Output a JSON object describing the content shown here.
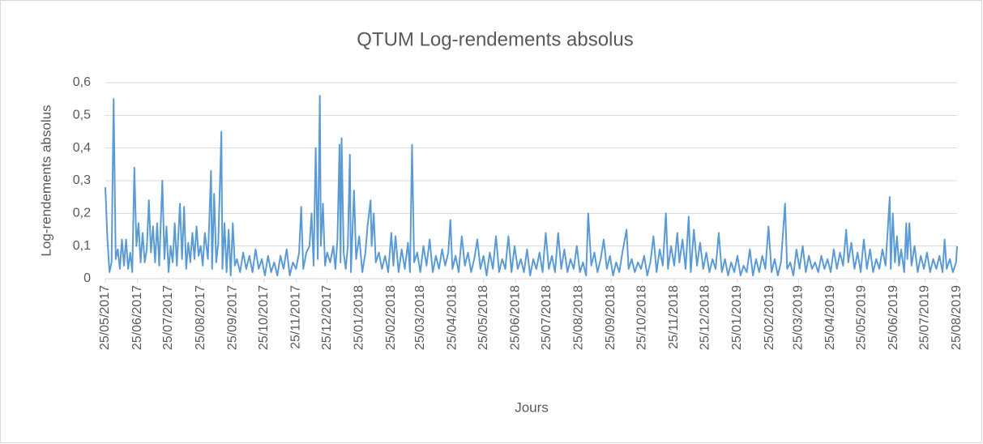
{
  "chart_data": {
    "type": "line",
    "title": "QTUM Log-rendements absolus",
    "ylabel": "Log-rendements absolus",
    "xlabel": "Jours",
    "color": "#5b9bd5",
    "grid": true,
    "ylim": [
      0,
      0.6
    ],
    "yticks": [
      0,
      {
        "value": 0.1,
        "label": "0,1"
      },
      {
        "value": 0.2,
        "label": "0,2"
      },
      {
        "value": 0.3,
        "label": "0,3"
      },
      {
        "value": 0.4,
        "label": "0,4"
      },
      {
        "value": 0.5,
        "label": "0,5"
      },
      {
        "value": 0.6,
        "label": "0,6"
      }
    ],
    "xlim": [
      "25/05/2017",
      "25/08/2019"
    ],
    "xticks": [
      "25/05/2017",
      "25/06/2017",
      "25/07/2017",
      "25/08/2017",
      "25/09/2017",
      "25/10/2017",
      "25/11/2017",
      "25/12/2017",
      "25/01/2018",
      "25/02/2018",
      "25/03/2018",
      "25/04/2018",
      "25/05/2018",
      "25/06/2018",
      "25/07/2018",
      "25/08/2018",
      "25/09/2018",
      "25/10/2018",
      "25/11/2018",
      "25/12/2018",
      "25/01/2019",
      "25/02/2019",
      "25/03/2019",
      "25/04/2019",
      "25/05/2019",
      "25/06/2019",
      "25/07/2019",
      "25/08/2019"
    ],
    "x": [
      "25/05/2017",
      "27/05/2017",
      "29/05/2017",
      "31/05/2017",
      "02/06/2017",
      "04/06/2017",
      "06/06/2017",
      "08/06/2017",
      "10/06/2017",
      "12/06/2017",
      "14/06/2017",
      "16/06/2017",
      "18/06/2017",
      "20/06/2017",
      "22/06/2017",
      "24/06/2017",
      "26/06/2017",
      "28/06/2017",
      "30/06/2017",
      "02/07/2017",
      "04/07/2017",
      "06/07/2017",
      "08/07/2017",
      "10/07/2017",
      "12/07/2017",
      "14/07/2017",
      "16/07/2017",
      "19/07/2017",
      "21/07/2017",
      "23/07/2017",
      "25/07/2017",
      "27/07/2017",
      "29/07/2017",
      "31/07/2017",
      "02/08/2017",
      "05/08/2017",
      "07/08/2017",
      "09/08/2017",
      "11/08/2017",
      "13/08/2017",
      "15/08/2017",
      "17/08/2017",
      "19/08/2017",
      "21/08/2017",
      "23/08/2017",
      "25/08/2017",
      "27/08/2017",
      "29/08/2017",
      "01/09/2017",
      "04/09/2017",
      "05/09/2017",
      "07/09/2017",
      "09/09/2017",
      "11/09/2017",
      "14/09/2017",
      "15/09/2017",
      "17/09/2017",
      "19/09/2017",
      "21/09/2017",
      "23/09/2017",
      "25/09/2017",
      "27/09/2017",
      "29/09/2017",
      "02/10/2017",
      "05/10/2017",
      "08/10/2017",
      "11/10/2017",
      "14/10/2017",
      "17/10/2017",
      "20/10/2017",
      "23/10/2017",
      "26/10/2017",
      "29/10/2017",
      "01/11/2017",
      "04/11/2017",
      "07/11/2017",
      "10/11/2017",
      "13/11/2017",
      "16/11/2017",
      "19/11/2017",
      "22/11/2017",
      "25/11/2017",
      "28/11/2017",
      "30/11/2017",
      "02/12/2017",
      "05/12/2017",
      "08/12/2017",
      "10/12/2017",
      "12/12/2017",
      "14/12/2017",
      "16/12/2017",
      "18/12/2017",
      "19/12/2017",
      "21/12/2017",
      "23/12/2017",
      "25/12/2017",
      "28/12/2017",
      "31/12/2017",
      "02/01/2018",
      "04/01/2018",
      "06/01/2018",
      "07/01/2018",
      "08/01/2018",
      "10/01/2018",
      "12/01/2018",
      "14/01/2018",
      "16/01/2018",
      "17/01/2018",
      "20/01/2018",
      "22/01/2018",
      "25/01/2018",
      "28/01/2018",
      "31/01/2018",
      "02/02/2018",
      "05/02/2018",
      "06/02/2018",
      "08/02/2018",
      "10/02/2018",
      "13/02/2018",
      "16/02/2018",
      "19/02/2018",
      "22/02/2018",
      "25/02/2018",
      "27/02/2018",
      "01/03/2018",
      "04/03/2018",
      "07/03/2018",
      "10/03/2018",
      "13/03/2018",
      "15/03/2018",
      "17/03/2018",
      "19/03/2018",
      "22/03/2018",
      "25/03/2018",
      "28/03/2018",
      "31/03/2018",
      "03/04/2018",
      "06/04/2018",
      "09/04/2018",
      "12/04/2018",
      "15/04/2018",
      "18/04/2018",
      "21/04/2018",
      "23/04/2018",
      "25/04/2018",
      "28/04/2018",
      "01/05/2018",
      "04/05/2018",
      "07/05/2018",
      "10/05/2018",
      "13/05/2018",
      "16/05/2018",
      "19/05/2018",
      "22/05/2018",
      "25/05/2018",
      "28/05/2018",
      "31/05/2018",
      "03/06/2018",
      "06/06/2018",
      "09/06/2018",
      "12/06/2018",
      "15/06/2018",
      "18/06/2018",
      "21/06/2018",
      "24/06/2018",
      "27/06/2018",
      "30/06/2018",
      "03/07/2018",
      "06/07/2018",
      "09/07/2018",
      "12/07/2018",
      "15/07/2018",
      "18/07/2018",
      "21/07/2018",
      "24/07/2018",
      "27/07/2018",
      "30/07/2018",
      "02/08/2018",
      "05/08/2018",
      "08/08/2018",
      "11/08/2018",
      "14/08/2018",
      "17/08/2018",
      "20/08/2018",
      "23/08/2018",
      "26/08/2018",
      "29/08/2018",
      "01/09/2018",
      "03/09/2018",
      "06/09/2018",
      "09/09/2018",
      "12/09/2018",
      "15/09/2018",
      "18/09/2018",
      "21/09/2018",
      "24/09/2018",
      "27/09/2018",
      "30/09/2018",
      "03/10/2018",
      "06/10/2018",
      "10/10/2018",
      "12/10/2018",
      "15/10/2018",
      "18/10/2018",
      "21/10/2018",
      "24/10/2018",
      "27/10/2018",
      "30/10/2018",
      "02/11/2018",
      "05/11/2018",
      "08/11/2018",
      "11/11/2018",
      "14/11/2018",
      "17/11/2018",
      "19/11/2018",
      "22/11/2018",
      "25/11/2018",
      "28/11/2018",
      "30/11/2018",
      "03/12/2018",
      "06/12/2018",
      "09/12/2018",
      "11/12/2018",
      "14/12/2018",
      "17/12/2018",
      "20/12/2018",
      "23/12/2018",
      "26/12/2018",
      "29/12/2018",
      "01/01/2019",
      "04/01/2019",
      "07/01/2019",
      "10/01/2019",
      "13/01/2019",
      "16/01/2019",
      "19/01/2019",
      "22/01/2019",
      "25/01/2019",
      "28/01/2019",
      "31/01/2019",
      "03/02/2019",
      "06/02/2019",
      "09/02/2019",
      "12/02/2019",
      "15/02/2019",
      "18/02/2019",
      "21/02/2019",
      "24/02/2019",
      "27/02/2019",
      "02/03/2019",
      "05/03/2019",
      "08/03/2019",
      "12/03/2019",
      "14/03/2019",
      "17/03/2019",
      "20/03/2019",
      "23/03/2019",
      "26/03/2019",
      "29/03/2019",
      "01/04/2019",
      "04/04/2019",
      "07/04/2019",
      "10/04/2019",
      "13/04/2019",
      "16/04/2019",
      "19/04/2019",
      "22/04/2019",
      "25/04/2019",
      "28/04/2019",
      "01/05/2019",
      "04/05/2019",
      "07/05/2019",
      "10/05/2019",
      "12/05/2019",
      "15/05/2019",
      "18/05/2019",
      "21/05/2019",
      "24/05/2019",
      "27/05/2019",
      "30/05/2019",
      "02/06/2019",
      "05/06/2019",
      "08/06/2019",
      "11/06/2019",
      "14/06/2019",
      "17/06/2019",
      "21/06/2019",
      "22/06/2019",
      "24/06/2019",
      "26/06/2019",
      "28/06/2019",
      "30/06/2019",
      "02/07/2019",
      "05/07/2019",
      "07/07/2019",
      "08/07/2019",
      "10/07/2019",
      "12/07/2019",
      "15/07/2019",
      "18/07/2019",
      "21/07/2019",
      "24/07/2019",
      "27/07/2019",
      "30/07/2019",
      "02/08/2019",
      "05/08/2019",
      "08/08/2019",
      "11/08/2019",
      "13/08/2019",
      "15/08/2019",
      "18/08/2019",
      "21/08/2019",
      "24/08/2019",
      "25/08/2019"
    ],
    "values": [
      0.28,
      0.12,
      0.02,
      0.05,
      0.55,
      0.06,
      0.09,
      0.03,
      0.12,
      0.04,
      0.12,
      0.03,
      0.08,
      0.02,
      0.34,
      0.1,
      0.17,
      0.05,
      0.14,
      0.05,
      0.09,
      0.24,
      0.08,
      0.16,
      0.05,
      0.17,
      0.04,
      0.3,
      0.06,
      0.16,
      0.02,
      0.1,
      0.05,
      0.17,
      0.04,
      0.23,
      0.06,
      0.22,
      0.03,
      0.11,
      0.05,
      0.14,
      0.06,
      0.16,
      0.07,
      0.1,
      0.04,
      0.14,
      0.06,
      0.33,
      0.03,
      0.26,
      0.05,
      0.11,
      0.45,
      0.03,
      0.17,
      0.02,
      0.15,
      0.01,
      0.17,
      0.04,
      0.06,
      0.02,
      0.08,
      0.03,
      0.07,
      0.02,
      0.09,
      0.03,
      0.06,
      0.01,
      0.07,
      0.02,
      0.05,
      0.01,
      0.07,
      0.03,
      0.09,
      0.01,
      0.05,
      0.03,
      0.08,
      0.22,
      0.03,
      0.08,
      0.1,
      0.2,
      0.04,
      0.4,
      0.06,
      0.56,
      0.1,
      0.23,
      0.04,
      0.08,
      0.05,
      0.1,
      0.03,
      0.12,
      0.41,
      0.05,
      0.43,
      0.08,
      0.03,
      0.1,
      0.38,
      0.02,
      0.27,
      0.06,
      0.13,
      0.02,
      0.08,
      0.16,
      0.24,
      0.1,
      0.2,
      0.05,
      0.08,
      0.03,
      0.07,
      0.02,
      0.14,
      0.04,
      0.13,
      0.02,
      0.09,
      0.03,
      0.11,
      0.02,
      0.41,
      0.05,
      0.08,
      0.02,
      0.1,
      0.04,
      0.12,
      0.02,
      0.07,
      0.03,
      0.09,
      0.04,
      0.08,
      0.18,
      0.03,
      0.07,
      0.02,
      0.13,
      0.04,
      0.08,
      0.02,
      0.06,
      0.12,
      0.03,
      0.07,
      0.01,
      0.08,
      0.03,
      0.13,
      0.02,
      0.06,
      0.03,
      0.13,
      0.02,
      0.1,
      0.03,
      0.06,
      0.02,
      0.09,
      0.01,
      0.06,
      0.03,
      0.08,
      0.02,
      0.14,
      0.03,
      0.07,
      0.02,
      0.14,
      0.03,
      0.09,
      0.02,
      0.06,
      0.03,
      0.1,
      0.02,
      0.05,
      0.01,
      0.2,
      0.04,
      0.08,
      0.02,
      0.06,
      0.12,
      0.03,
      0.07,
      0.01,
      0.05,
      0.02,
      0.08,
      0.15,
      0.03,
      0.06,
      0.02,
      0.05,
      0.03,
      0.07,
      0.01,
      0.05,
      0.13,
      0.02,
      0.09,
      0.04,
      0.2,
      0.03,
      0.1,
      0.04,
      0.14,
      0.05,
      0.12,
      0.03,
      0.19,
      0.02,
      0.15,
      0.04,
      0.11,
      0.03,
      0.08,
      0.02,
      0.06,
      0.03,
      0.14,
      0.02,
      0.06,
      0.01,
      0.05,
      0.02,
      0.07,
      0.01,
      0.04,
      0.02,
      0.09,
      0.01,
      0.06,
      0.02,
      0.07,
      0.03,
      0.16,
      0.02,
      0.06,
      0.01,
      0.05,
      0.23,
      0.03,
      0.05,
      0.01,
      0.09,
      0.03,
      0.1,
      0.02,
      0.07,
      0.03,
      0.05,
      0.02,
      0.07,
      0.03,
      0.06,
      0.02,
      0.09,
      0.03,
      0.08,
      0.04,
      0.15,
      0.05,
      0.11,
      0.03,
      0.08,
      0.02,
      0.12,
      0.03,
      0.09,
      0.02,
      0.06,
      0.03,
      0.09,
      0.04,
      0.25,
      0.03,
      0.2,
      0.05,
      0.13,
      0.04,
      0.09,
      0.02,
      0.17,
      0.06,
      0.17,
      0.04,
      0.1,
      0.02,
      0.07,
      0.03,
      0.08,
      0.02,
      0.06,
      0.03,
      0.07,
      0.02,
      0.12,
      0.03,
      0.06,
      0.02,
      0.05,
      0.1
    ]
  }
}
